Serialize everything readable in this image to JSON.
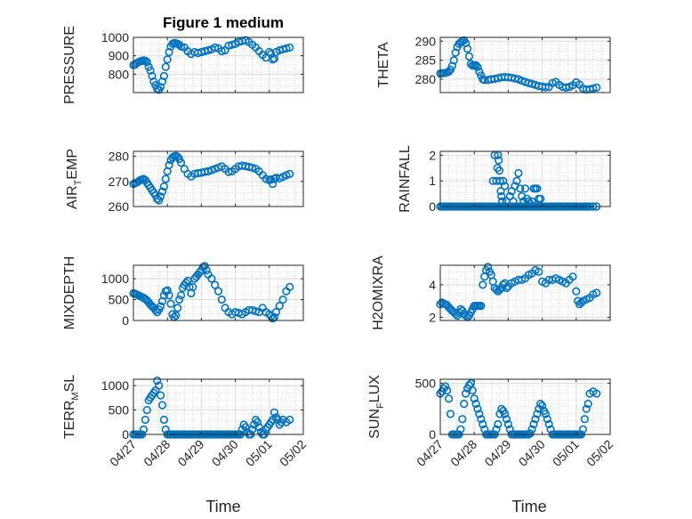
{
  "figure": {
    "title": "Figure 1 medium",
    "xlabel": "Time",
    "x_tick_labels": [
      "04/27",
      "04/28",
      "04/29",
      "04/30",
      "05/01",
      "05/02"
    ]
  },
  "colors": {
    "marker": "#0072BD",
    "axis": "#262626",
    "grid": "#dcdcdc",
    "minor_grid": "#bdbdbd"
  },
  "chart_data": [
    {
      "type": "scatter",
      "ylabel": "PRESSURE",
      "xlim": [
        0,
        5
      ],
      "ylim": [
        700,
        1000
      ],
      "yticks": [
        800,
        900,
        1000
      ],
      "grid": true,
      "minor_grid": true,
      "x": [
        0.0,
        0.05,
        0.1,
        0.15,
        0.2,
        0.25,
        0.3,
        0.35,
        0.4,
        0.45,
        0.5,
        0.55,
        0.6,
        0.65,
        0.7,
        0.75,
        0.8,
        0.85,
        0.9,
        0.95,
        1.0,
        1.05,
        1.1,
        1.15,
        1.2,
        1.25,
        1.3,
        1.35,
        1.4,
        1.5,
        1.6,
        1.7,
        1.8,
        1.9,
        2.0,
        2.1,
        2.2,
        2.3,
        2.4,
        2.5,
        2.6,
        2.7,
        2.8,
        2.9,
        3.0,
        3.1,
        3.2,
        3.3,
        3.4,
        3.5,
        3.6,
        3.7,
        3.8,
        3.9,
        4.0,
        4.05,
        4.1,
        4.15,
        4.2,
        4.3,
        4.4,
        4.5,
        4.6
      ],
      "y": [
        850,
        852,
        860,
        865,
        870,
        872,
        875,
        873,
        865,
        840,
        820,
        790,
        760,
        740,
        720,
        715,
        730,
        760,
        790,
        840,
        880,
        920,
        950,
        965,
        970,
        968,
        965,
        960,
        950,
        945,
        925,
        910,
        920,
        915,
        920,
        925,
        930,
        935,
        945,
        940,
        925,
        930,
        955,
        960,
        965,
        975,
        980,
        985,
        975,
        960,
        945,
        925,
        905,
        890,
        920,
        910,
        880,
        885,
        920,
        930,
        935,
        940,
        945
      ]
    },
    {
      "type": "scatter",
      "ylabel": "THETA",
      "xlim": [
        0,
        5
      ],
      "ylim": [
        276.5,
        291
      ],
      "yticks": [
        280,
        285,
        290
      ],
      "grid": true,
      "minor_grid": true,
      "x": [
        0.0,
        0.05,
        0.1,
        0.15,
        0.2,
        0.25,
        0.3,
        0.35,
        0.4,
        0.45,
        0.5,
        0.55,
        0.6,
        0.65,
        0.7,
        0.75,
        0.8,
        0.85,
        0.9,
        0.95,
        1.0,
        1.05,
        1.1,
        1.15,
        1.2,
        1.25,
        1.3,
        1.4,
        1.5,
        1.6,
        1.7,
        1.8,
        1.9,
        2.0,
        2.1,
        2.2,
        2.3,
        2.4,
        2.5,
        2.6,
        2.7,
        2.8,
        2.9,
        3.0,
        3.1,
        3.2,
        3.3,
        3.4,
        3.5,
        3.6,
        3.7,
        3.8,
        3.9,
        4.0,
        4.1,
        4.2,
        4.3,
        4.4,
        4.5,
        4.6
      ],
      "y": [
        281.5,
        281.6,
        281.6,
        281.7,
        281.8,
        282,
        282.5,
        283.5,
        285,
        287,
        288.5,
        289.3,
        289.7,
        290,
        290.2,
        289.5,
        288,
        286,
        284,
        283.6,
        283.6,
        283.7,
        283.2,
        282,
        281,
        280,
        279.8,
        279.8,
        280,
        280.1,
        280.3,
        280.5,
        280.6,
        280.5,
        280.4,
        280.2,
        280,
        279.6,
        279.3,
        279,
        278.8,
        278.5,
        278.2,
        278.1,
        277.9,
        278,
        279,
        279.3,
        278.5,
        278,
        277.8,
        278,
        278.4,
        279.2,
        278.6,
        277.6,
        277.3,
        277.4,
        277.6,
        277.8
      ]
    },
    {
      "type": "scatter",
      "ylabel": "AIR_TEMP",
      "xlim": [
        0,
        5
      ],
      "ylim": [
        260,
        282
      ],
      "yticks": [
        260,
        270,
        280
      ],
      "grid": true,
      "minor_grid": true,
      "x": [
        0.0,
        0.05,
        0.1,
        0.15,
        0.2,
        0.25,
        0.3,
        0.35,
        0.4,
        0.45,
        0.5,
        0.55,
        0.6,
        0.65,
        0.7,
        0.75,
        0.8,
        0.85,
        0.9,
        0.95,
        1.0,
        1.05,
        1.1,
        1.15,
        1.2,
        1.25,
        1.3,
        1.35,
        1.4,
        1.5,
        1.6,
        1.7,
        1.8,
        1.9,
        2.0,
        2.1,
        2.2,
        2.3,
        2.4,
        2.5,
        2.6,
        2.7,
        2.8,
        2.9,
        3.0,
        3.1,
        3.2,
        3.3,
        3.4,
        3.5,
        3.6,
        3.7,
        3.8,
        3.9,
        4.0,
        4.05,
        4.1,
        4.15,
        4.2,
        4.3,
        4.4,
        4.5,
        4.6
      ],
      "y": [
        269,
        269.3,
        269.6,
        270,
        270.5,
        270.8,
        271,
        270.5,
        269.5,
        268.5,
        267.5,
        266.5,
        265.5,
        264.5,
        263,
        262.5,
        264,
        266,
        268,
        271,
        274,
        276.5,
        278.5,
        279.5,
        280,
        280.2,
        279.8,
        279,
        277.5,
        275,
        273,
        272,
        273,
        273.3,
        273.5,
        273.8,
        274,
        274.5,
        275,
        275.5,
        276,
        275,
        273.8,
        274,
        275,
        276,
        276.3,
        276.1,
        275.8,
        275.5,
        275,
        274,
        272.5,
        271,
        270.5,
        270.8,
        269,
        271,
        271.5,
        271.2,
        271.8,
        272.5,
        273
      ]
    },
    {
      "type": "scatter",
      "ylabel": "RAINFALL",
      "xlim": [
        0,
        5
      ],
      "ylim": [
        0,
        2.15
      ],
      "yticks": [
        0,
        1,
        2
      ],
      "grid": true,
      "minor_grid": true,
      "x": [
        0.0,
        0.05,
        0.1,
        0.15,
        0.2,
        0.25,
        0.3,
        0.35,
        0.4,
        0.45,
        0.5,
        0.55,
        0.6,
        0.65,
        0.7,
        0.75,
        0.8,
        0.85,
        0.9,
        0.95,
        1.0,
        1.05,
        1.1,
        1.15,
        1.2,
        1.25,
        1.3,
        1.35,
        1.4,
        1.45,
        1.5,
        1.55,
        1.6,
        1.65,
        1.7,
        1.75,
        1.8,
        1.85,
        1.9,
        1.95,
        2.0,
        2.05,
        2.1,
        2.15,
        2.2,
        2.25,
        2.3,
        2.35,
        2.4,
        2.45,
        2.5,
        2.55,
        2.6,
        2.65,
        2.7,
        2.75,
        2.8,
        2.85,
        2.9,
        2.95,
        3.0,
        3.05,
        3.1,
        3.15,
        3.2,
        3.25,
        3.3,
        3.35,
        3.4,
        3.45,
        3.5,
        3.55,
        3.6,
        3.65,
        3.7,
        3.75,
        3.8,
        3.85,
        3.9,
        3.95,
        4.0,
        4.05,
        4.1,
        4.15,
        4.2,
        4.25,
        4.3,
        4.35,
        4.4,
        4.5,
        4.6
      ],
      "y": [
        0,
        0,
        0,
        0,
        0,
        0,
        0,
        0,
        0,
        0,
        0,
        0,
        0,
        0,
        0,
        0,
        0,
        0,
        0,
        0,
        0,
        0,
        0,
        0,
        0,
        0,
        0,
        0,
        0,
        0,
        0,
        0,
        0,
        0,
        0,
        0,
        0,
        0,
        0,
        0,
        0,
        0,
        0,
        0,
        0,
        0,
        0,
        0,
        0,
        0,
        0,
        0,
        0,
        0,
        0,
        0,
        0,
        0,
        0,
        0,
        0,
        0,
        0,
        0,
        0,
        0,
        0,
        0,
        0,
        0,
        0,
        0,
        0,
        0,
        0,
        0,
        0,
        0,
        0,
        0,
        0,
        0,
        0,
        0,
        0,
        0,
        0,
        0,
        0,
        0,
        0
      ],
      "x_extra": [
        1.55,
        1.6,
        1.65,
        1.68,
        1.7,
        1.72,
        1.74,
        1.76,
        1.78,
        1.8,
        1.82,
        1.85,
        1.9,
        1.95,
        2.0,
        2.05,
        2.1,
        2.15,
        2.2,
        2.25,
        2.3,
        2.35,
        2.4,
        2.45,
        2.5,
        2.55,
        2.6,
        2.65,
        2.7,
        2.75,
        2.8,
        2.85,
        2.9,
        2.95,
        3.0
      ],
      "y_extra": [
        1.0,
        2.0,
        1.0,
        1.5,
        2.0,
        1.8,
        1.4,
        1.0,
        0.6,
        0.4,
        0.2,
        1.0,
        0.8,
        0.2,
        0.0,
        0.4,
        0.6,
        0.2,
        0.8,
        1.0,
        1.3,
        0.7,
        0.4,
        0.2,
        0.7,
        0.3,
        0.2,
        0.1,
        0.2,
        0.7,
        0.7,
        0.7,
        0.3,
        0.3,
        0.0
      ]
    },
    {
      "type": "scatter",
      "ylabel": "MIXDEPTH",
      "xlim": [
        0,
        5
      ],
      "ylim": [
        0,
        1320
      ],
      "yticks": [
        0,
        500,
        1000
      ],
      "grid": true,
      "minor_grid": true,
      "x": [
        0.0,
        0.05,
        0.1,
        0.15,
        0.2,
        0.25,
        0.3,
        0.35,
        0.4,
        0.45,
        0.5,
        0.55,
        0.6,
        0.65,
        0.7,
        0.75,
        0.8,
        0.85,
        0.9,
        0.95,
        1.0,
        1.05,
        1.1,
        1.15,
        1.2,
        1.25,
        1.3,
        1.35,
        1.4,
        1.45,
        1.5,
        1.55,
        1.6,
        1.65,
        1.7,
        1.75,
        1.8,
        1.85,
        1.9,
        1.95,
        2.0,
        2.05,
        2.1,
        2.15,
        2.2,
        2.3,
        2.4,
        2.5,
        2.6,
        2.7,
        2.8,
        2.9,
        3.0,
        3.1,
        3.2,
        3.3,
        3.4,
        3.5,
        3.6,
        3.7,
        3.8,
        3.9,
        4.0,
        4.05,
        4.1,
        4.15,
        4.2,
        4.3,
        4.4,
        4.5,
        4.6
      ],
      "y": [
        650,
        640,
        620,
        600,
        580,
        560,
        540,
        510,
        480,
        430,
        380,
        340,
        300,
        250,
        200,
        260,
        340,
        460,
        600,
        700,
        720,
        600,
        400,
        150,
        80,
        120,
        300,
        500,
        600,
        780,
        850,
        900,
        950,
        800,
        650,
        800,
        1000,
        1050,
        1100,
        1150,
        1200,
        1280,
        1300,
        1200,
        1100,
        1000,
        850,
        700,
        500,
        300,
        200,
        150,
        200,
        180,
        150,
        200,
        250,
        250,
        220,
        200,
        300,
        200,
        150,
        100,
        50,
        80,
        200,
        350,
        500,
        700,
        800
      ]
    },
    {
      "type": "scatter",
      "ylabel": "H2OMIXRA",
      "xlim": [
        0,
        5
      ],
      "ylim": [
        1.8,
        5.2
      ],
      "yticks": [
        2,
        4
      ],
      "grid": true,
      "minor_grid": true,
      "x": [
        0.0,
        0.05,
        0.1,
        0.15,
        0.2,
        0.25,
        0.3,
        0.35,
        0.4,
        0.45,
        0.5,
        0.55,
        0.6,
        0.65,
        0.7,
        0.75,
        0.8,
        0.85,
        0.9,
        0.95,
        1.0,
        1.05,
        1.1,
        1.15,
        1.2,
        1.25,
        1.3,
        1.35,
        1.4,
        1.45,
        1.5,
        1.55,
        1.6,
        1.65,
        1.7,
        1.75,
        1.8,
        1.85,
        1.9,
        1.95,
        2.0,
        2.1,
        2.2,
        2.3,
        2.4,
        2.5,
        2.6,
        2.7,
        2.8,
        2.9,
        3.0,
        3.1,
        3.2,
        3.3,
        3.4,
        3.5,
        3.6,
        3.7,
        3.8,
        3.9,
        4.0,
        4.05,
        4.1,
        4.15,
        4.2,
        4.3,
        4.4,
        4.5,
        4.6
      ],
      "y": [
        2.8,
        2.9,
        2.85,
        2.8,
        2.75,
        2.6,
        2.5,
        2.4,
        2.3,
        2.2,
        2.1,
        2.3,
        2.5,
        2.4,
        2.2,
        2.1,
        2.0,
        2.1,
        2.3,
        2.5,
        2.7,
        2.7,
        2.7,
        2.7,
        2.7,
        4.0,
        4.5,
        4.9,
        5.1,
        4.8,
        4.6,
        4.2,
        3.8,
        3.7,
        3.6,
        3.7,
        3.8,
        4.0,
        4.1,
        3.8,
        3.9,
        4.1,
        4.2,
        4.3,
        4.3,
        4.4,
        4.6,
        4.7,
        4.9,
        4.8,
        4.2,
        4.1,
        4.3,
        4.3,
        4.4,
        4.3,
        4.2,
        4.1,
        4.3,
        4.5,
        3.6,
        3.0,
        2.8,
        2.9,
        3.0,
        3.1,
        3.2,
        3.4,
        3.5
      ]
    },
    {
      "type": "scatter",
      "ylabel": "TERR_MSL",
      "xlim": [
        0,
        5
      ],
      "ylim": [
        0,
        1130
      ],
      "yticks": [
        0,
        500,
        1000
      ],
      "grid": true,
      "minor_grid": true,
      "x": [
        0.0,
        0.05,
        0.1,
        0.15,
        0.2,
        0.25,
        0.3,
        0.35,
        0.4,
        0.45,
        0.5,
        0.55,
        0.6,
        0.65,
        0.7,
        0.75,
        0.8,
        0.85,
        0.9,
        0.95,
        1.0,
        1.05,
        1.1,
        1.15,
        1.2,
        1.25,
        1.3,
        1.35,
        1.4,
        1.45,
        1.5,
        1.55,
        1.6,
        1.65,
        1.7,
        1.75,
        1.8,
        1.85,
        1.9,
        1.95,
        2.0,
        2.05,
        2.1,
        2.15,
        2.2,
        2.25,
        2.3,
        2.35,
        2.4,
        2.45,
        2.5,
        2.55,
        2.6,
        2.65,
        2.7,
        2.75,
        2.8,
        2.85,
        2.9,
        2.95,
        3.0,
        3.05,
        3.1,
        3.15,
        3.2,
        3.25,
        3.3,
        3.35,
        3.4,
        3.45,
        3.5,
        3.55,
        3.6,
        3.65,
        3.7,
        3.75,
        3.8,
        3.85,
        3.9,
        3.95,
        4.0,
        4.05,
        4.1,
        4.15,
        4.2,
        4.25,
        4.3,
        4.35,
        4.4,
        4.5,
        4.6
      ],
      "y": [
        0,
        0,
        0,
        0,
        0,
        0,
        100,
        300,
        500,
        700,
        750,
        800,
        850,
        900,
        1100,
        1000,
        800,
        600,
        300,
        100,
        0,
        0,
        0,
        0,
        0,
        0,
        0,
        0,
        0,
        0,
        0,
        0,
        0,
        0,
        0,
        0,
        0,
        0,
        0,
        0,
        0,
        0,
        0,
        0,
        0,
        0,
        0,
        0,
        0,
        0,
        0,
        0,
        0,
        0,
        0,
        0,
        0,
        0,
        0,
        0,
        0,
        0,
        0,
        0,
        100,
        200,
        150,
        50,
        0,
        0,
        100,
        200,
        300,
        250,
        150,
        50,
        0,
        0,
        100,
        150,
        200,
        250,
        300,
        450,
        350,
        300,
        200,
        250,
        300,
        250,
        300
      ]
    },
    {
      "type": "scatter",
      "ylabel": "SUN_FLUX",
      "xlim": [
        0,
        5
      ],
      "ylim": [
        0,
        540
      ],
      "yticks": [
        0,
        500
      ],
      "grid": true,
      "minor_grid": true,
      "x": [
        0.0,
        0.05,
        0.1,
        0.15,
        0.2,
        0.25,
        0.3,
        0.35,
        0.4,
        0.45,
        0.5,
        0.55,
        0.6,
        0.65,
        0.7,
        0.75,
        0.8,
        0.85,
        0.9,
        0.95,
        1.0,
        1.05,
        1.1,
        1.15,
        1.2,
        1.25,
        1.3,
        1.35,
        1.4,
        1.45,
        1.5,
        1.55,
        1.6,
        1.65,
        1.7,
        1.75,
        1.8,
        1.85,
        1.9,
        1.95,
        2.0,
        2.05,
        2.1,
        2.15,
        2.2,
        2.25,
        2.3,
        2.35,
        2.4,
        2.45,
        2.5,
        2.55,
        2.6,
        2.65,
        2.7,
        2.75,
        2.8,
        2.85,
        2.9,
        2.95,
        3.0,
        3.05,
        3.1,
        3.15,
        3.2,
        3.25,
        3.3,
        3.35,
        3.4,
        3.45,
        3.5,
        3.55,
        3.6,
        3.65,
        3.7,
        3.75,
        3.8,
        3.85,
        3.9,
        3.95,
        4.0,
        4.05,
        4.1,
        4.15,
        4.2,
        4.25,
        4.3,
        4.35,
        4.4,
        4.5,
        4.6
      ],
      "y": [
        400,
        420,
        450,
        470,
        430,
        350,
        200,
        0,
        0,
        0,
        0,
        0,
        50,
        150,
        300,
        400,
        450,
        480,
        500,
        430,
        350,
        300,
        250,
        200,
        150,
        100,
        50,
        0,
        0,
        0,
        0,
        0,
        0,
        50,
        100,
        200,
        250,
        230,
        200,
        150,
        100,
        50,
        0,
        0,
        0,
        0,
        0,
        0,
        0,
        0,
        0,
        0,
        0,
        10,
        50,
        100,
        150,
        200,
        250,
        300,
        280,
        230,
        200,
        150,
        100,
        50,
        0,
        0,
        0,
        0,
        0,
        0,
        0,
        0,
        0,
        0,
        0,
        0,
        0,
        0,
        0,
        0,
        0,
        0,
        50,
        150,
        250,
        300,
        400,
        420,
        400
      ]
    }
  ]
}
